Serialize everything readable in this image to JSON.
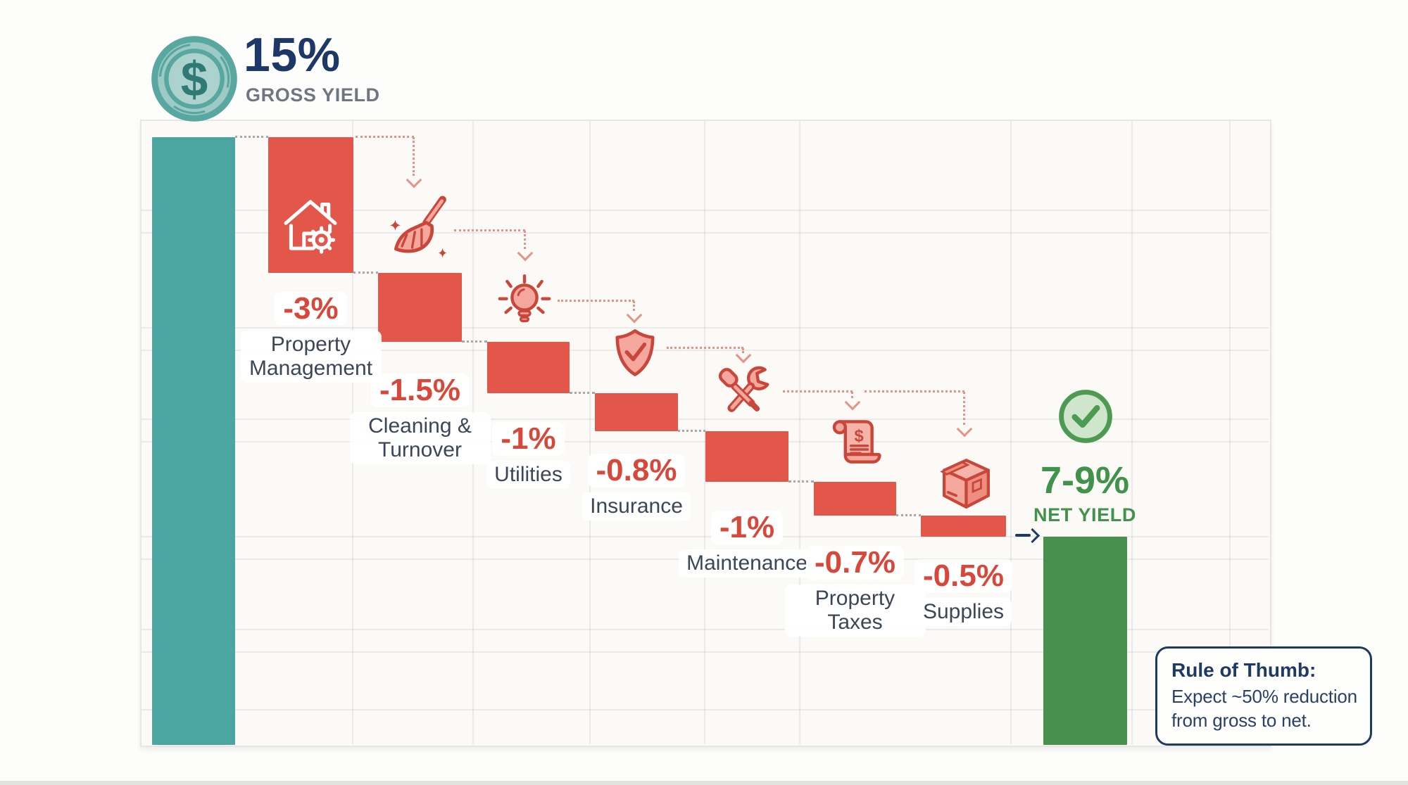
{
  "chart_data": {
    "type": "bar",
    "subtype": "waterfall",
    "title": "",
    "start": {
      "label": "GROSS YIELD",
      "value": 15,
      "value_label": "15%",
      "icon": "dollar-coin-icon"
    },
    "steps": [
      {
        "label": "Property Management",
        "delta": -3,
        "delta_label": "-3%",
        "icon": "house-gear-icon"
      },
      {
        "label": "Cleaning & Turnover",
        "delta": -1.5,
        "delta_label": "-1.5%",
        "icon": "broom-icon"
      },
      {
        "label": "Utilities",
        "delta": -1,
        "delta_label": "-1%",
        "icon": "lightbulb-icon"
      },
      {
        "label": "Insurance",
        "delta": -0.8,
        "delta_label": "-0.8%",
        "icon": "shield-check-icon"
      },
      {
        "label": "Maintenance",
        "delta": -1,
        "delta_label": "-1%",
        "icon": "tools-icon"
      },
      {
        "label": "Property Taxes",
        "delta": -0.7,
        "delta_label": "-0.7%",
        "icon": "receipt-icon"
      },
      {
        "label": "Supplies",
        "delta": -0.5,
        "delta_label": "-0.5%",
        "icon": "box-icon"
      }
    ],
    "end": {
      "label": "NET YIELD",
      "value_range": [
        7,
        9
      ],
      "value_label": "7-9%",
      "icon": "check-circle-icon"
    },
    "ylim": [
      0,
      15
    ],
    "grid": true,
    "legend": false,
    "colors": {
      "start_bar": "#4BA6A1",
      "decrease_bar": "#E2574A",
      "end_bar": "#48904D",
      "delta_text": "#D7483A",
      "category_text": "#3B4657",
      "gross_text": "#1D3766",
      "muted_text": "#6E7681",
      "net_text": "#41924A",
      "connector_gray": "#A7A7AC",
      "connector_red": "#E59287",
      "navy": "#1E3A63",
      "icon_stroke": "#C9473A",
      "icon_fill": "#F4A79C",
      "icon_fill_light": "#F6B3A9",
      "icon_fill_dark": "#EF8D80",
      "coin_ring": "#58A7A1",
      "coin_fill": "#9ECAC5",
      "coin_fill_inner": "#ABD2CD",
      "coin_symbol": "#2F7A74",
      "check_green": "#4D9B52",
      "check_fill": "#CFE5CC",
      "gridline": "rgba(165,155,170,0.18)"
    }
  },
  "rule_box": {
    "title": "Rule of Thumb:",
    "lines": [
      "Expect ~50% reduction",
      "from gross to net."
    ]
  }
}
